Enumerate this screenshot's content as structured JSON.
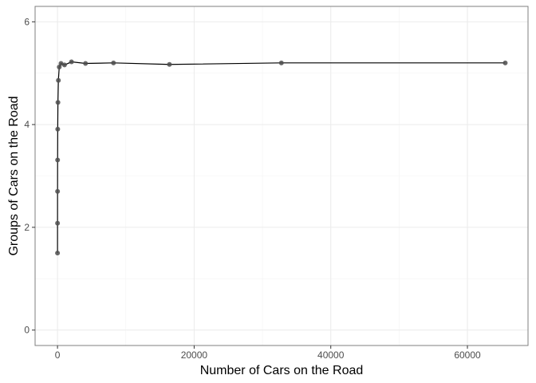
{
  "chart_data": {
    "type": "line",
    "title": "",
    "xlabel": "Number of Cars on the Road",
    "ylabel": "Groups of Cars on the Road",
    "xlim": [
      -3280,
      68870
    ],
    "ylim": [
      -0.3,
      6.3
    ],
    "x_ticks": [
      0,
      20000,
      40000,
      60000
    ],
    "x_tick_labels": [
      "0",
      "20000",
      "40000",
      "60000"
    ],
    "y_ticks": [
      0,
      2,
      4,
      6
    ],
    "y_tick_labels": [
      "0",
      "2",
      "4",
      "6"
    ],
    "grid": true,
    "markers": true,
    "series": [
      {
        "x": [
          2,
          4,
          8,
          16,
          32,
          64,
          128,
          256,
          512,
          1024,
          2048,
          4096,
          8192,
          16384,
          32768,
          65536
        ],
        "y": [
          1.5,
          2.08,
          2.7,
          3.31,
          3.91,
          4.43,
          4.86,
          5.12,
          5.19,
          5.16,
          5.22,
          5.19,
          5.2,
          5.17,
          5.2,
          5.2
        ]
      }
    ],
    "colors": {
      "line": "#000000",
      "point": "#4d4d4d",
      "panel_border": "#7f7f7f",
      "grid": "#ebebeb"
    }
  }
}
